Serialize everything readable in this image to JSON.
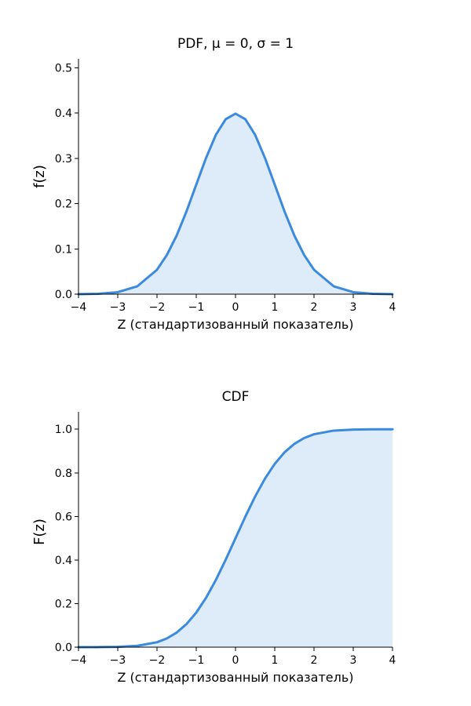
{
  "style": {
    "line_color": "#3b8ade",
    "fill_color": "#deebf8"
  },
  "chart_data": [
    {
      "type": "area",
      "title": "PDF, μ = 0, σ = 1",
      "xlabel": "Z (стандартизованный показатель)",
      "ylabel": "f(z)",
      "xlim": [
        -4,
        4
      ],
      "ylim": [
        0,
        0.52
      ],
      "xticks": [
        -4,
        -3,
        -2,
        -1,
        0,
        1,
        2,
        3,
        4
      ],
      "xtick_labels": [
        "−4",
        "−3",
        "−2",
        "−1",
        "0",
        "1",
        "2",
        "3",
        "4"
      ],
      "yticks": [
        0,
        0.1,
        0.2,
        0.3,
        0.4,
        0.5
      ],
      "ytick_labels": [
        "0.0",
        "0.1",
        "0.2",
        "0.3",
        "0.4",
        "0.5"
      ],
      "grid": false,
      "x": [
        -4,
        -3.5,
        -3,
        -2.5,
        -2,
        -1.75,
        -1.5,
        -1.25,
        -1,
        -0.75,
        -0.5,
        -0.25,
        0,
        0.25,
        0.5,
        0.75,
        1,
        1.25,
        1.5,
        1.75,
        2,
        2.5,
        3,
        3.5,
        4
      ],
      "y": [
        0.0001,
        0.0009,
        0.0044,
        0.0175,
        0.054,
        0.0863,
        0.1295,
        0.1826,
        0.242,
        0.3011,
        0.3521,
        0.3867,
        0.3989,
        0.3867,
        0.3521,
        0.3011,
        0.242,
        0.1826,
        0.1295,
        0.0863,
        0.054,
        0.0175,
        0.0044,
        0.0009,
        0.0001
      ]
    },
    {
      "type": "area",
      "title": "CDF",
      "xlabel": "Z (стандартизованный показатель)",
      "ylabel": "F(z)",
      "xlim": [
        -4,
        4
      ],
      "ylim": [
        0,
        1.08
      ],
      "xticks": [
        -4,
        -3,
        -2,
        -1,
        0,
        1,
        2,
        3,
        4
      ],
      "xtick_labels": [
        "−4",
        "−3",
        "−2",
        "−1",
        "0",
        "1",
        "2",
        "3",
        "4"
      ],
      "yticks": [
        0,
        0.2,
        0.4,
        0.6,
        0.8,
        1.0
      ],
      "ytick_labels": [
        "0.0",
        "0.2",
        "0.4",
        "0.6",
        "0.8",
        "1.0"
      ],
      "grid": false,
      "x": [
        -4,
        -3.5,
        -3,
        -2.5,
        -2,
        -1.75,
        -1.5,
        -1.25,
        -1,
        -0.75,
        -0.5,
        -0.25,
        0,
        0.25,
        0.5,
        0.75,
        1,
        1.25,
        1.5,
        1.75,
        2,
        2.5,
        3,
        3.5,
        4
      ],
      "y": [
        3e-05,
        0.0002,
        0.0013,
        0.0062,
        0.0228,
        0.0401,
        0.0668,
        0.1056,
        0.1587,
        0.2266,
        0.3085,
        0.4013,
        0.5,
        0.5987,
        0.6915,
        0.7734,
        0.8413,
        0.8944,
        0.9332,
        0.9599,
        0.9772,
        0.9938,
        0.9987,
        0.9998,
        0.99997
      ]
    }
  ]
}
